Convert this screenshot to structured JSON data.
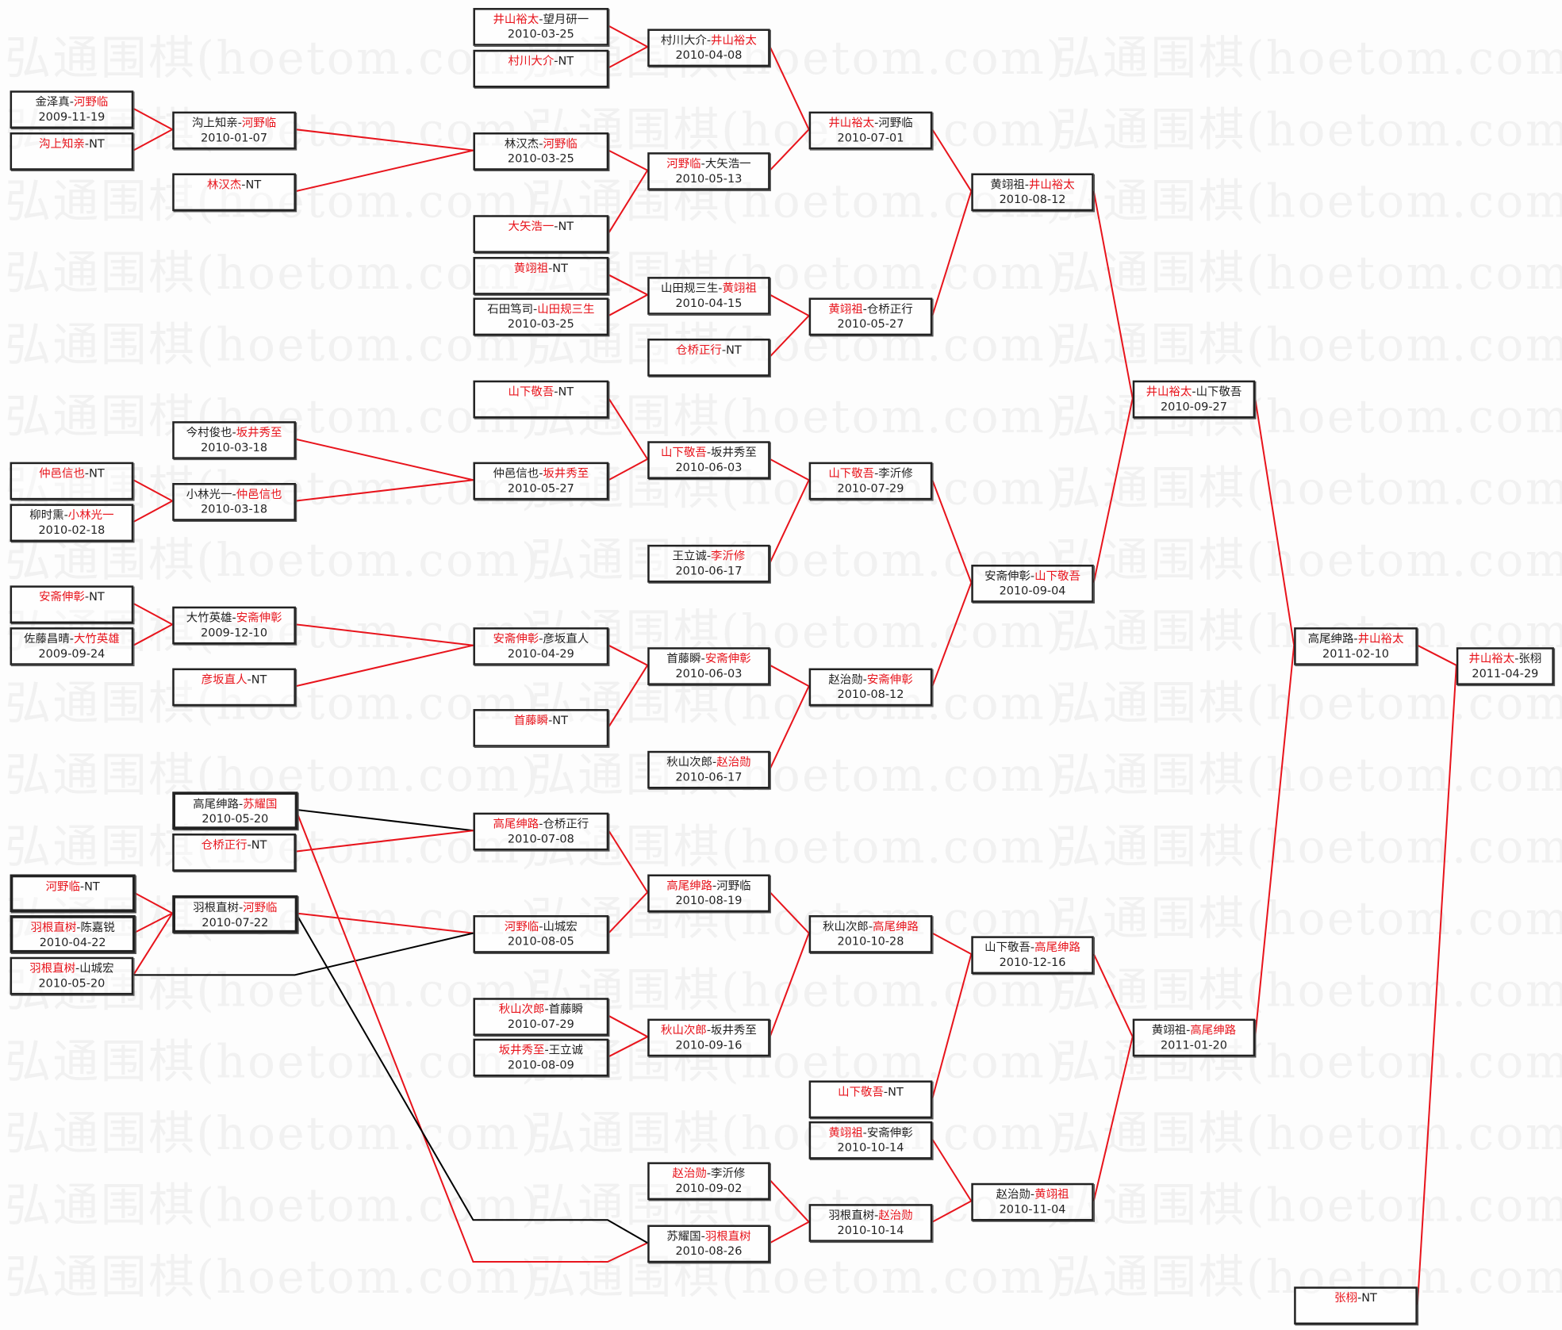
{
  "watermark": "弘通围棋(hoetom.com)",
  "colors": {
    "winner": "#e8141c",
    "line_main": "#e8141c",
    "line_alt": "#000000",
    "border": "#222222"
  },
  "matches": [
    {
      "p1": "金泽真",
      "p2": "河野临",
      "date": "2009-11-19",
      "red": 2
    },
    {
      "p1": "沟上知亲",
      "p2": "NT",
      "date": "",
      "red": 1
    },
    {
      "p1": "仲邑信也",
      "p2": "NT",
      "date": "",
      "red": 1
    },
    {
      "p1": "柳时熏",
      "p2": "小林光一",
      "date": "2010-02-18",
      "red": 2
    },
    {
      "p1": "安斋伸彰",
      "p2": "NT",
      "date": "",
      "red": 1
    },
    {
      "p1": "佐藤昌晴",
      "p2": "大竹英雄",
      "date": "2009-09-24",
      "red": 2
    },
    {
      "p1": "河野临",
      "p2": "NT",
      "date": "",
      "red": 1
    },
    {
      "p1": "羽根直树",
      "p2": "陈嘉锐",
      "date": "2010-04-22",
      "red": 1
    },
    {
      "p1": "羽根直树",
      "p2": "山城宏",
      "date": "2010-05-20",
      "red": 1
    },
    {
      "p1": "沟上知亲",
      "p2": "河野临",
      "date": "2010-01-07",
      "red": 2
    },
    {
      "p1": "林汉杰",
      "p2": "NT",
      "date": "",
      "red": 1
    },
    {
      "p1": "今村俊也",
      "p2": "坂井秀至",
      "date": "2010-03-18",
      "red": 2
    },
    {
      "p1": "小林光一",
      "p2": "仲邑信也",
      "date": "2010-03-18",
      "red": 2
    },
    {
      "p1": "大竹英雄",
      "p2": "安斋伸彰",
      "date": "2009-12-10",
      "red": 2
    },
    {
      "p1": "彦坂直人",
      "p2": "NT",
      "date": "",
      "red": 1
    },
    {
      "p1": "高尾绅路",
      "p2": "苏耀国",
      "date": "2010-05-20",
      "red": 2
    },
    {
      "p1": "仓桥正行",
      "p2": "NT",
      "date": "",
      "red": 1
    },
    {
      "p1": "羽根直树",
      "p2": "河野临",
      "date": "2010-07-22",
      "red": 2
    },
    {
      "p1": "井山裕太",
      "p2": "望月研一",
      "date": "2010-03-25",
      "red": 1
    },
    {
      "p1": "村川大介",
      "p2": "NT",
      "date": "",
      "red": 1
    },
    {
      "p1": "林汉杰",
      "p2": "河野临",
      "date": "2010-03-25",
      "red": 2
    },
    {
      "p1": "大矢浩一",
      "p2": "NT",
      "date": "",
      "red": 1
    },
    {
      "p1": "黄翊祖",
      "p2": "NT",
      "date": "",
      "red": 1
    },
    {
      "p1": "石田笃司",
      "p2": "山田规三生",
      "date": "2010-03-25",
      "red": 2
    },
    {
      "p1": "山下敬吾",
      "p2": "NT",
      "date": "",
      "red": 1
    },
    {
      "p1": "仲邑信也",
      "p2": "坂井秀至",
      "date": "2010-05-27",
      "red": 2
    },
    {
      "p1": "安斋伸彰",
      "p2": "彦坂直人",
      "date": "2010-04-29",
      "red": 1
    },
    {
      "p1": "首藤瞬",
      "p2": "NT",
      "date": "",
      "red": 1
    },
    {
      "p1": "高尾绅路",
      "p2": "仓桥正行",
      "date": "2010-07-08",
      "red": 1
    },
    {
      "p1": "河野临",
      "p2": "山城宏",
      "date": "2010-08-05",
      "red": 1
    },
    {
      "p1": "秋山次郎",
      "p2": "首藤瞬",
      "date": "2010-07-29",
      "red": 1
    },
    {
      "p1": "坂井秀至",
      "p2": "王立诚",
      "date": "2010-08-09",
      "red": 1
    },
    {
      "p1": "村川大介",
      "p2": "井山裕太",
      "date": "2010-04-08",
      "red": 2
    },
    {
      "p1": "河野临",
      "p2": "大矢浩一",
      "date": "2010-05-13",
      "red": 1
    },
    {
      "p1": "山田规三生",
      "p2": "黄翊祖",
      "date": "2010-04-15",
      "red": 2
    },
    {
      "p1": "仓桥正行",
      "p2": "NT",
      "date": "",
      "red": 1
    },
    {
      "p1": "山下敬吾",
      "p2": "坂井秀至",
      "date": "2010-06-03",
      "red": 1
    },
    {
      "p1": "王立诚",
      "p2": "李沂修",
      "date": "2010-06-17",
      "red": 2
    },
    {
      "p1": "首藤瞬",
      "p2": "安斋伸彰",
      "date": "2010-06-03",
      "red": 2
    },
    {
      "p1": "秋山次郎",
      "p2": "赵治勋",
      "date": "2010-06-17",
      "red": 2
    },
    {
      "p1": "高尾绅路",
      "p2": "河野临",
      "date": "2010-08-19",
      "red": 1
    },
    {
      "p1": "秋山次郎",
      "p2": "坂井秀至",
      "date": "2010-09-16",
      "red": 1
    },
    {
      "p1": "赵治勋",
      "p2": "李沂修",
      "date": "2010-09-02",
      "red": 1
    },
    {
      "p1": "苏耀国",
      "p2": "羽根直树",
      "date": "2010-08-26",
      "red": 2
    },
    {
      "p1": "井山裕太",
      "p2": "河野临",
      "date": "2010-07-01",
      "red": 1
    },
    {
      "p1": "黄翊祖",
      "p2": "仓桥正行",
      "date": "2010-05-27",
      "red": 1
    },
    {
      "p1": "山下敬吾",
      "p2": "李沂修",
      "date": "2010-07-29",
      "red": 1
    },
    {
      "p1": "赵治勋",
      "p2": "安斋伸彰",
      "date": "2010-08-12",
      "red": 2
    },
    {
      "p1": "秋山次郎",
      "p2": "高尾绅路",
      "date": "2010-10-28",
      "red": 2
    },
    {
      "p1": "山下敬吾",
      "p2": "NT",
      "date": "",
      "red": 1
    },
    {
      "p1": "黄翊祖",
      "p2": "安斋伸彰",
      "date": "2010-10-14",
      "red": 1
    },
    {
      "p1": "羽根直树",
      "p2": "赵治勋",
      "date": "2010-10-14",
      "red": 2
    },
    {
      "p1": "黄翊祖",
      "p2": "井山裕太",
      "date": "2010-08-12",
      "red": 2
    },
    {
      "p1": "安斋伸彰",
      "p2": "山下敬吾",
      "date": "2010-09-04",
      "red": 2
    },
    {
      "p1": "山下敬吾",
      "p2": "高尾绅路",
      "date": "2010-12-16",
      "red": 2
    },
    {
      "p1": "赵治勋",
      "p2": "黄翊祖",
      "date": "2010-11-04",
      "red": 2
    },
    {
      "p1": "井山裕太",
      "p2": "山下敬吾",
      "date": "2010-09-27",
      "red": 1
    },
    {
      "p1": "黄翊祖",
      "p2": "高尾绅路",
      "date": "2011-01-20",
      "red": 2
    },
    {
      "p1": "高尾绅路",
      "p2": "井山裕太",
      "date": "2011-02-10",
      "red": 2
    },
    {
      "p1": "张栩",
      "p2": "NT",
      "date": "",
      "red": 1
    },
    {
      "p1": "井山裕太",
      "p2": "张栩",
      "date": "2011-04-29",
      "red": 1
    }
  ]
}
